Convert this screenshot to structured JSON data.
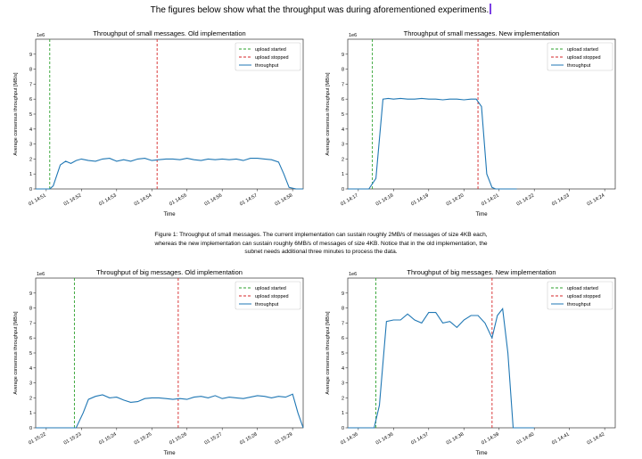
{
  "document": {
    "intro_text": "The figures below show what the throughput was during aforementioned experiments.",
    "caption_lines": [
      "Figure 1: Throughput of small messages. The current implementation can sustain roughly 2MB/s of messages of size 4KB each,",
      "whereas the new implementation can sustain roughly 6MB/s of messages of size 4KB. Notice that in the old implementation, the",
      "subnet needs additional three minutes to process the data."
    ]
  },
  "chart_data": [
    {
      "type": "line",
      "title": "Throughput of small messages. Old implementation",
      "xlabel": "Time",
      "ylabel": "Average consensus throughput [MB/s]",
      "y_multiplier_label": "1e6",
      "ylim": [
        0,
        10
      ],
      "y_ticks": [
        0,
        1,
        2,
        3,
        4,
        5,
        6,
        7,
        8,
        9
      ],
      "xlim": [
        -0.3,
        7.3
      ],
      "x_tick_values": [
        0,
        1,
        2,
        3,
        4,
        5,
        6,
        7
      ],
      "x_tick_labels": [
        "01 14:51",
        "01 14:52",
        "01 14:53",
        "01 14:54",
        "01 14:55",
        "01 14:56",
        "01 14:57",
        "01 14:58"
      ],
      "upload_started": 0.1,
      "upload_stopped": 3.15,
      "legend_position": "top-right",
      "legend": [
        "upload started",
        "upload stopped",
        "throughput"
      ],
      "colors": {
        "started": "#2ca02c",
        "stopped": "#d62728",
        "throughput": "#1f77b4"
      },
      "series": [
        {
          "name": "throughput",
          "x": [
            -0.3,
            -0.1,
            0.1,
            0.2,
            0.4,
            0.55,
            0.7,
            0.85,
            1.0,
            1.2,
            1.4,
            1.6,
            1.8,
            2.0,
            2.2,
            2.4,
            2.6,
            2.8,
            3.0,
            3.2,
            3.4,
            3.6,
            3.8,
            4.0,
            4.2,
            4.4,
            4.6,
            4.8,
            5.0,
            5.2,
            5.4,
            5.6,
            5.8,
            6.0,
            6.2,
            6.4,
            6.6,
            6.75,
            6.9,
            7.1,
            7.3
          ],
          "y": [
            0,
            0,
            0,
            0.2,
            1.6,
            1.85,
            1.7,
            1.9,
            2.0,
            1.9,
            1.85,
            2.0,
            2.05,
            1.85,
            1.95,
            1.85,
            2.0,
            2.05,
            1.9,
            1.95,
            2.0,
            2.0,
            1.95,
            2.05,
            1.95,
            1.9,
            2.0,
            1.95,
            2.0,
            1.95,
            2.0,
            1.9,
            2.05,
            2.05,
            2.0,
            1.95,
            1.8,
            1.0,
            0.1,
            0,
            0
          ]
        }
      ]
    },
    {
      "type": "line",
      "title": "Throughput of small messages. New implementation",
      "xlabel": "Time",
      "ylabel": "Average consensus throughput [MB/s]",
      "y_multiplier_label": "1e6",
      "ylim": [
        0,
        10
      ],
      "y_ticks": [
        0,
        1,
        2,
        3,
        4,
        5,
        6,
        7,
        8,
        9
      ],
      "xlim": [
        -0.3,
        7.3
      ],
      "x_tick_values": [
        0,
        1,
        2,
        3,
        4,
        5,
        6,
        7
      ],
      "x_tick_labels": [
        "01 14:17",
        "01 14:18",
        "01 14:19",
        "01 14:20",
        "01 14:21",
        "01 14:22",
        "01 14:23",
        "01 14:24"
      ],
      "upload_started": 0.4,
      "upload_stopped": 3.4,
      "legend_position": "top-right",
      "legend": [
        "upload started",
        "upload stopped",
        "throughput"
      ],
      "colors": {
        "started": "#2ca02c",
        "stopped": "#d62728",
        "throughput": "#1f77b4"
      },
      "series": [
        {
          "name": "throughput",
          "x": [
            -0.3,
            0.3,
            0.5,
            0.7,
            0.85,
            1.0,
            1.2,
            1.4,
            1.6,
            1.8,
            2.0,
            2.2,
            2.4,
            2.6,
            2.8,
            3.0,
            3.2,
            3.35,
            3.5,
            3.65,
            3.8,
            3.9,
            4.1,
            4.3,
            4.5
          ],
          "y": [
            0,
            0,
            0.7,
            6.0,
            6.05,
            6.0,
            6.05,
            6.0,
            6.0,
            6.05,
            6.0,
            6.0,
            5.95,
            6.0,
            6.0,
            5.95,
            6.0,
            6.0,
            5.5,
            1.0,
            0.1,
            0,
            0,
            0,
            0
          ]
        }
      ]
    },
    {
      "type": "line",
      "title": "Throughput of big messages. Old implementation",
      "xlabel": "Time",
      "ylabel": "Average consensus throughput [MB/s]",
      "y_multiplier_label": "1e6",
      "ylim": [
        0,
        10
      ],
      "y_ticks": [
        0,
        1,
        2,
        3,
        4,
        5,
        6,
        7,
        8,
        9
      ],
      "xlim": [
        -0.3,
        7.3
      ],
      "x_tick_values": [
        0,
        1,
        2,
        3,
        4,
        5,
        6,
        7
      ],
      "x_tick_labels": [
        "01 15:22",
        "01 15:23",
        "01 15:24",
        "01 15:25",
        "01 15:26",
        "01 15:27",
        "01 15:28",
        "01 15:29"
      ],
      "upload_started": 0.8,
      "upload_stopped": 3.75,
      "legend_position": "top-right",
      "legend": [
        "upload started",
        "upload stopped",
        "throughput"
      ],
      "colors": {
        "started": "#2ca02c",
        "stopped": "#d62728",
        "throughput": "#1f77b4"
      },
      "series": [
        {
          "name": "throughput",
          "x": [
            -0.3,
            0.85,
            1.05,
            1.2,
            1.4,
            1.6,
            1.8,
            2.0,
            2.2,
            2.4,
            2.6,
            2.8,
            3.0,
            3.2,
            3.4,
            3.6,
            3.8,
            4.0,
            4.2,
            4.4,
            4.6,
            4.8,
            5.0,
            5.2,
            5.4,
            5.6,
            5.8,
            6.0,
            6.2,
            6.4,
            6.6,
            6.8,
            7.0,
            7.15,
            7.3
          ],
          "y": [
            0,
            0,
            1.0,
            1.9,
            2.1,
            2.2,
            2.0,
            2.05,
            1.85,
            1.7,
            1.75,
            1.95,
            2.0,
            2.0,
            1.95,
            1.9,
            1.95,
            1.9,
            2.05,
            2.1,
            2.0,
            2.15,
            1.95,
            2.05,
            2.0,
            1.95,
            2.05,
            2.15,
            2.1,
            2.0,
            2.1,
            2.05,
            2.25,
            1.0,
            0
          ]
        }
      ]
    },
    {
      "type": "line",
      "title": "Throughput of big messages. New implementation",
      "xlabel": "Time",
      "ylabel": "Average consensus throughput [MB/s]",
      "y_multiplier_label": "1e6",
      "ylim": [
        0,
        10
      ],
      "y_ticks": [
        0,
        1,
        2,
        3,
        4,
        5,
        6,
        7,
        8,
        9
      ],
      "xlim": [
        -0.3,
        7.3
      ],
      "x_tick_values": [
        0,
        1,
        2,
        3,
        4,
        5,
        6,
        7
      ],
      "x_tick_labels": [
        "01 14:35",
        "01 14:36",
        "01 14:37",
        "01 14:38",
        "01 14:39",
        "01 14:40",
        "01 14:41",
        "01 14:42"
      ],
      "upload_started": 0.5,
      "upload_stopped": 3.8,
      "legend_position": "top-right",
      "legend": [
        "upload started",
        "upload stopped",
        "throughput"
      ],
      "colors": {
        "started": "#2ca02c",
        "stopped": "#d62728",
        "throughput": "#1f77b4"
      },
      "series": [
        {
          "name": "throughput",
          "x": [
            -0.3,
            0.45,
            0.6,
            0.8,
            1.0,
            1.2,
            1.4,
            1.6,
            1.8,
            2.0,
            2.2,
            2.4,
            2.6,
            2.8,
            3.0,
            3.2,
            3.4,
            3.6,
            3.8,
            3.95,
            4.1,
            4.25,
            4.4,
            4.6,
            4.8,
            5.0
          ],
          "y": [
            0,
            0,
            1.5,
            7.1,
            7.2,
            7.2,
            7.6,
            7.2,
            7.0,
            7.7,
            7.7,
            7.0,
            7.1,
            6.7,
            7.2,
            7.5,
            7.5,
            7.0,
            6.0,
            7.5,
            7.95,
            5.0,
            0,
            0,
            0,
            0
          ]
        }
      ]
    }
  ]
}
